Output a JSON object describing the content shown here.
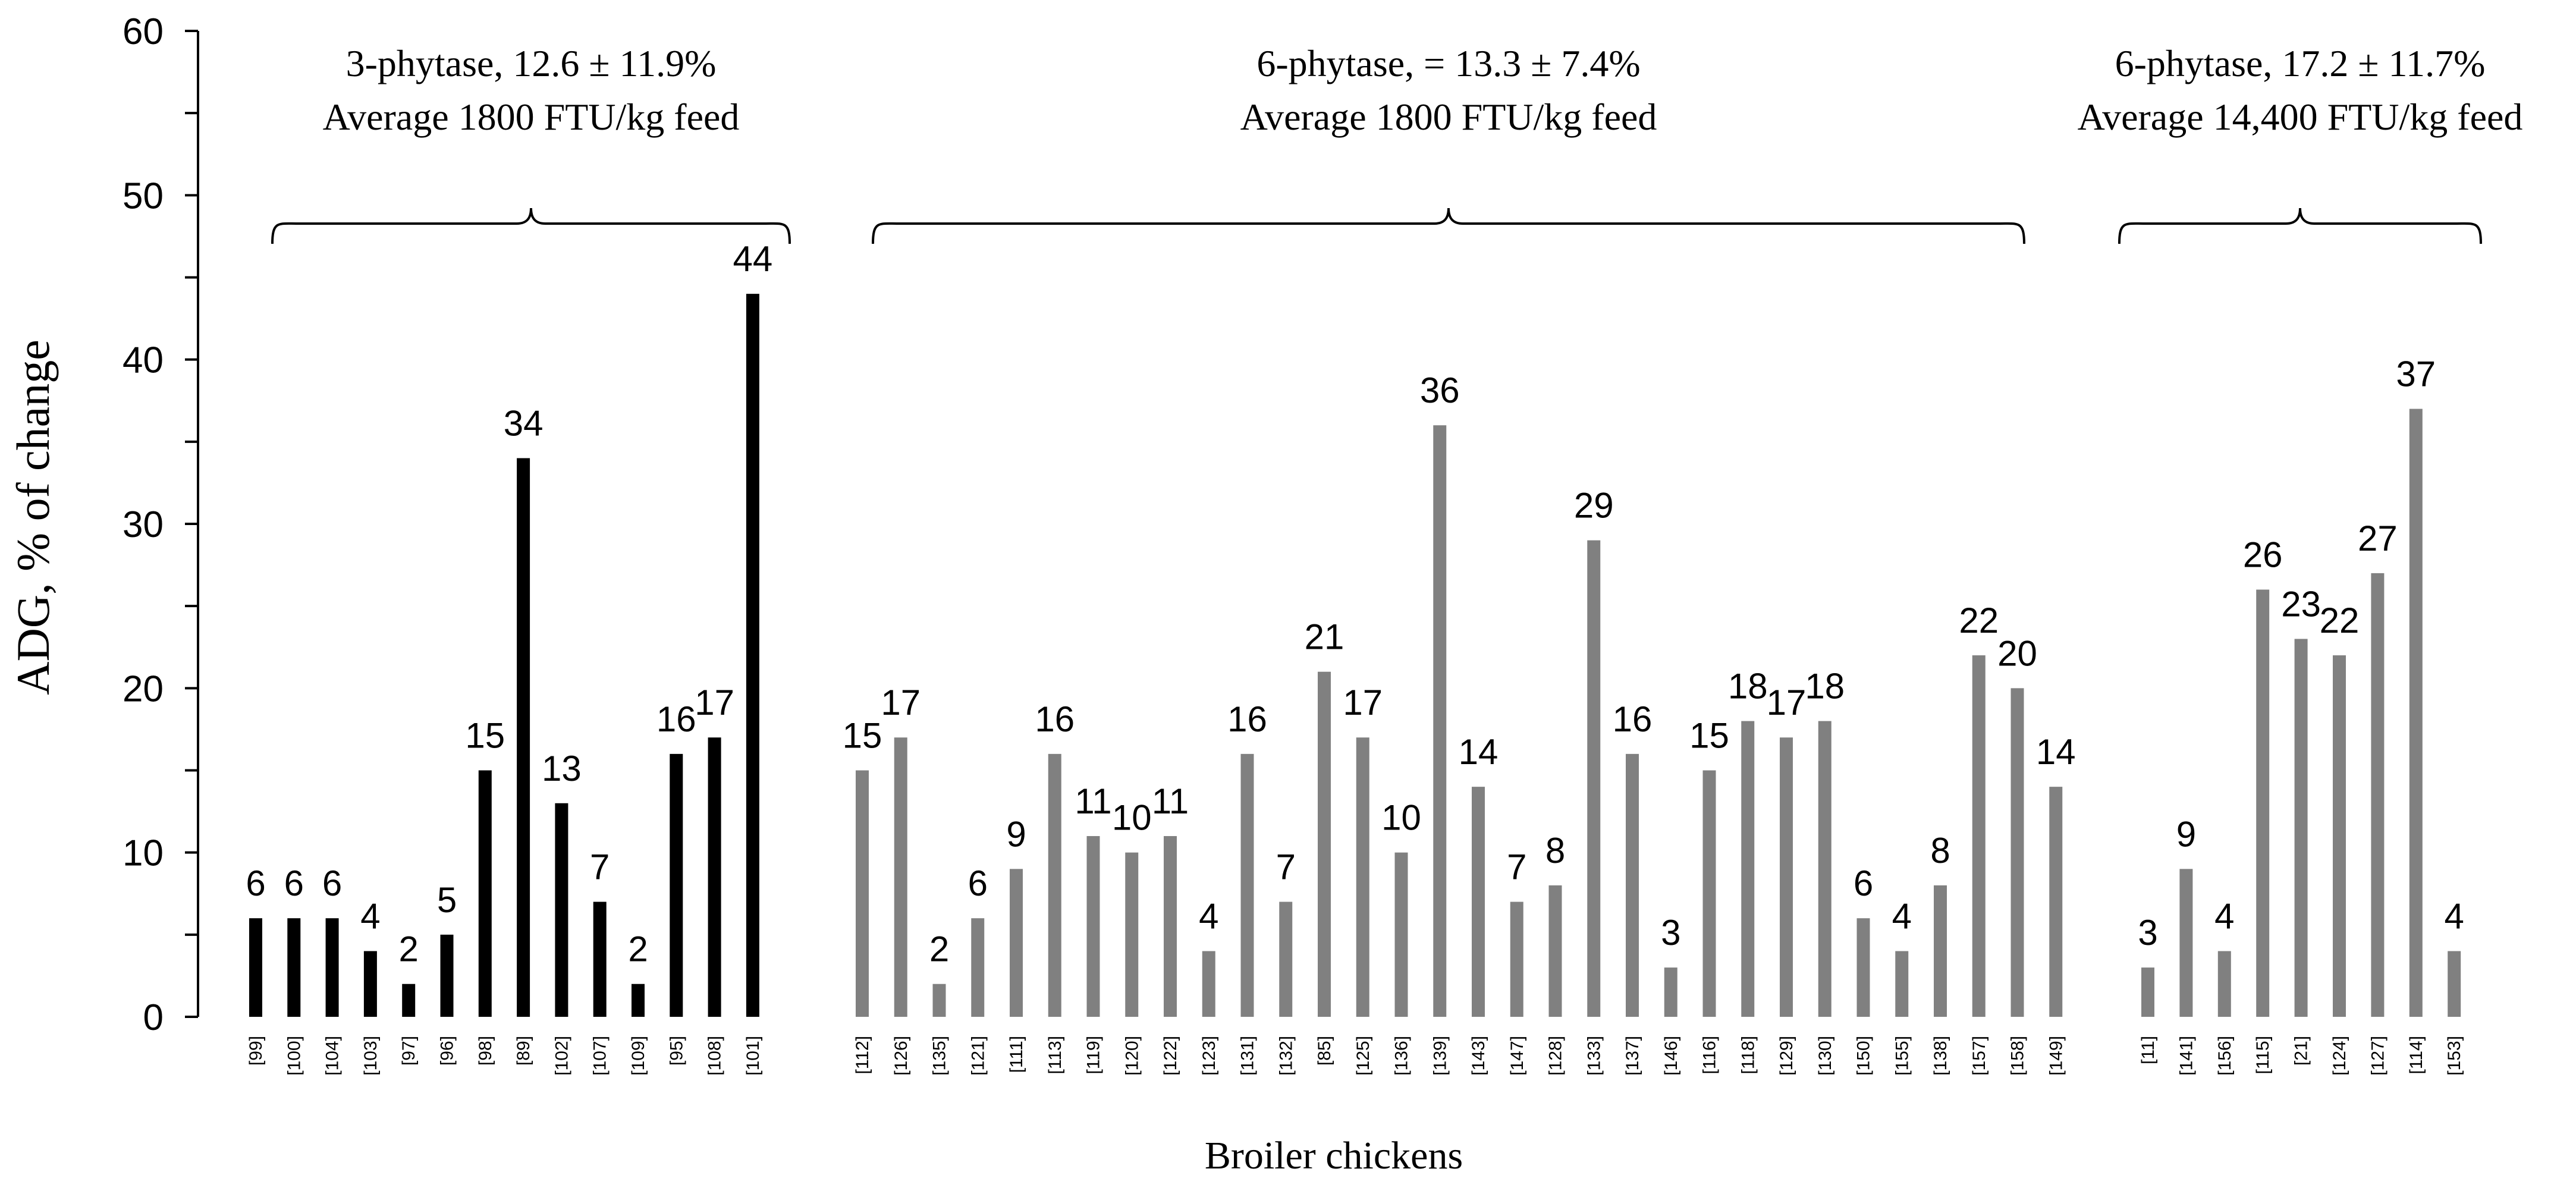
{
  "chart_data": {
    "type": "bar",
    "xlabel": "Broiler chickens",
    "ylabel": "ADG, % of change",
    "ylim": [
      0,
      60
    ],
    "yticks": [
      0,
      10,
      20,
      30,
      40,
      50,
      60
    ],
    "grid": false,
    "legend": "none",
    "groups": [
      {
        "label_line1": "3-phytase, 12.6 ± 11.9%",
        "label_line2": "Average 1800 FTU/kg feed",
        "color": "#000000",
        "categories": [
          "[99]",
          "[100]",
          "[104]",
          "[103]",
          "[97]",
          "[96]",
          "[98]",
          "[89]",
          "[102]",
          "[107]",
          "[109]",
          "[95]",
          "[108]",
          "[101]"
        ],
        "values": [
          6,
          6,
          6,
          4,
          2,
          5,
          15,
          34,
          13,
          7,
          2,
          16,
          17,
          44
        ]
      },
      {
        "label_line1": "6-phytase, = 13.3 ± 7.4%",
        "label_line2": "Average 1800 FTU/kg feed",
        "color": "#808080",
        "categories": [
          "[112]",
          "[126]",
          "[135]",
          "[121]",
          "[111]",
          "[113]",
          "[119]",
          "[120]",
          "[122]",
          "[123]",
          "[131]",
          "[132]",
          "[85]",
          "[125]",
          "[136]",
          "[139]",
          "[143]",
          "[147]",
          "[128]",
          "[133]",
          "[137]",
          "[146]",
          "[116]",
          "[118]",
          "[129]",
          "[130]",
          "[150]",
          "[155]",
          "[138]",
          "[157]",
          "[158]",
          "[149]"
        ],
        "values": [
          15,
          17,
          2,
          6,
          9,
          16,
          11,
          10,
          11,
          4,
          16,
          7,
          21,
          17,
          10,
          36,
          14,
          7,
          8,
          29,
          16,
          3,
          15,
          18,
          17,
          18,
          6,
          4,
          8,
          22,
          20,
          14
        ]
      },
      {
        "label_line1": "6-phytase, 17.2 ± 11.7%",
        "label_line2": "Average 14,400 FTU/kg feed",
        "color": "#808080",
        "categories": [
          "[11]",
          "[141]",
          "[156]",
          "[115]",
          "[21]",
          "[124]",
          "[127]",
          "[114]",
          "[153]"
        ],
        "values": [
          3,
          9,
          4,
          26,
          23,
          22,
          27,
          37,
          4
        ]
      }
    ]
  }
}
